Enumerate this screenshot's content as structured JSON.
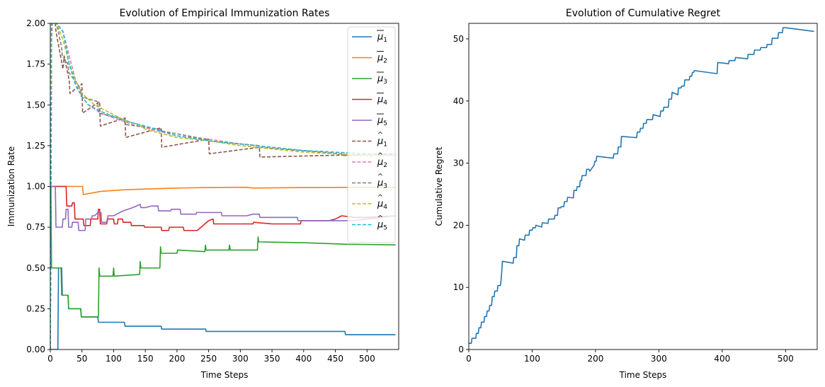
{
  "chart_data": [
    {
      "type": "line",
      "title": "Evolution of Empirical Immunization Rates",
      "xlabel": "Time Steps",
      "ylabel": "Immunization Rate",
      "xlim": [
        0,
        550
      ],
      "ylim": [
        0,
        2.0
      ],
      "xticks": [
        0,
        50,
        100,
        150,
        200,
        250,
        300,
        350,
        400,
        450,
        500
      ],
      "yticks": [
        0.0,
        0.25,
        0.5,
        0.75,
        1.0,
        1.25,
        1.5,
        1.75,
        2.0
      ],
      "xtick_labels": [
        "0",
        "50",
        "100",
        "150",
        "200",
        "250",
        "300",
        "350",
        "400",
        "450",
        "500"
      ],
      "ytick_labels": [
        "0.00",
        "0.25",
        "0.50",
        "0.75",
        "1.00",
        "1.25",
        "1.50",
        "1.75",
        "2.00"
      ],
      "grid": false,
      "legend_position": "top-right",
      "series": [
        {
          "name": "μ̄1",
          "base": "μ",
          "bar": true,
          "sub": "1",
          "color": "#1f77b4",
          "dash": false,
          "x": [
            0,
            12,
            13,
            18,
            19,
            28,
            29,
            48,
            49,
            75,
            76,
            117,
            118,
            175,
            176,
            245,
            246,
            465,
            466,
            545
          ],
          "y": [
            0,
            0,
            0.5,
            0.5,
            0.333,
            0.333,
            0.25,
            0.25,
            0.2,
            0.2,
            0.167,
            0.167,
            0.143,
            0.143,
            0.125,
            0.125,
            0.111,
            0.111,
            0.091,
            0.091
          ]
        },
        {
          "name": "μ̄2",
          "base": "μ",
          "bar": true,
          "sub": "2",
          "color": "#ff7f0e",
          "dash": false,
          "x": [
            0,
            51,
            52,
            80,
            120,
            160,
            200,
            250,
            310,
            320,
            400,
            545
          ],
          "y": [
            1.0,
            1.0,
            0.95,
            0.97,
            0.98,
            0.985,
            0.99,
            0.993,
            0.995,
            0.99,
            0.993,
            0.995
          ]
        },
        {
          "name": "μ̄3",
          "base": "μ",
          "bar": true,
          "sub": "3",
          "color": "#2ca02c",
          "dash": false,
          "x": [
            0,
            1,
            2,
            4,
            5,
            17,
            18,
            28,
            29,
            48,
            49,
            76,
            77,
            78,
            79,
            99,
            100,
            101,
            141,
            142,
            143,
            173,
            174,
            175,
            200,
            201,
            244,
            245,
            246,
            282,
            283,
            284,
            327,
            328,
            329,
            400,
            470,
            545
          ],
          "y": [
            1.0,
            1.0,
            0.5,
            0.5,
            0.5,
            0.5,
            0.333,
            0.333,
            0.25,
            0.25,
            0.2,
            0.2,
            0.5,
            0.45,
            0.45,
            0.45,
            0.5,
            0.45,
            0.46,
            0.54,
            0.5,
            0.5,
            0.63,
            0.59,
            0.59,
            0.61,
            0.6,
            0.64,
            0.61,
            0.61,
            0.64,
            0.61,
            0.61,
            0.69,
            0.66,
            0.655,
            0.645,
            0.642
          ]
        },
        {
          "name": "μ̄4",
          "base": "μ",
          "bar": true,
          "sub": "4",
          "color": "#d62728",
          "dash": false,
          "x": [
            0,
            25,
            26,
            34,
            35,
            38,
            39,
            52,
            53,
            63,
            64,
            75,
            76,
            78,
            79,
            89,
            90,
            100,
            101,
            106,
            107,
            114,
            115,
            127,
            128,
            148,
            149,
            175,
            176,
            187,
            188,
            210,
            211,
            232,
            250,
            257,
            258,
            320,
            321,
            350,
            380,
            395,
            396,
            440,
            450,
            460,
            480,
            500,
            545
          ],
          "y": [
            1.0,
            1.0,
            0.88,
            0.88,
            0.9,
            0.9,
            0.8,
            0.8,
            0.76,
            0.76,
            0.8,
            0.8,
            0.86,
            0.86,
            0.77,
            0.77,
            0.8,
            0.8,
            0.77,
            0.77,
            0.8,
            0.8,
            0.78,
            0.78,
            0.76,
            0.76,
            0.75,
            0.75,
            0.73,
            0.73,
            0.75,
            0.75,
            0.73,
            0.73,
            0.79,
            0.8,
            0.77,
            0.77,
            0.78,
            0.77,
            0.77,
            0.77,
            0.79,
            0.79,
            0.8,
            0.82,
            0.81,
            0.81,
            0.82
          ]
        },
        {
          "name": "μ̄5",
          "base": "μ",
          "bar": true,
          "sub": "5",
          "color": "#9467bd",
          "dash": false,
          "x": [
            0,
            8,
            9,
            19,
            20,
            24,
            25,
            28,
            29,
            34,
            35,
            44,
            45,
            55,
            56,
            65,
            66,
            70,
            75,
            80,
            81,
            90,
            91,
            100,
            115,
            130,
            142,
            143,
            150,
            160,
            170,
            171,
            190,
            191,
            205,
            206,
            230,
            231,
            260,
            270,
            271,
            310,
            320,
            330,
            331,
            390,
            391,
            480,
            500,
            520,
            545
          ],
          "y": [
            1.0,
            1.0,
            0.75,
            0.75,
            0.8,
            0.8,
            0.86,
            0.86,
            0.75,
            0.75,
            0.78,
            0.78,
            0.73,
            0.73,
            0.8,
            0.8,
            0.82,
            0.82,
            0.84,
            0.84,
            0.78,
            0.78,
            0.82,
            0.82,
            0.85,
            0.87,
            0.89,
            0.87,
            0.87,
            0.88,
            0.88,
            0.85,
            0.85,
            0.86,
            0.86,
            0.83,
            0.83,
            0.84,
            0.84,
            0.84,
            0.82,
            0.82,
            0.83,
            0.83,
            0.81,
            0.81,
            0.79,
            0.79,
            0.8,
            0.81,
            0.82
          ]
        },
        {
          "name": "μ̂1",
          "base": "μ",
          "bar": false,
          "sub": "1",
          "color": "#8c564b",
          "dash": true,
          "x": [
            0,
            2,
            3,
            8,
            9,
            20,
            22,
            23,
            30,
            31,
            50,
            51,
            78,
            79,
            118,
            119,
            175,
            176,
            250,
            251,
            330,
            331,
            545
          ],
          "y": [
            0,
            1.9,
            2.0,
            2.0,
            1.95,
            1.72,
            1.8,
            1.78,
            1.65,
            1.57,
            1.63,
            1.45,
            1.52,
            1.37,
            1.42,
            1.3,
            1.36,
            1.24,
            1.29,
            1.2,
            1.24,
            1.18,
            1.2
          ]
        },
        {
          "name": "μ̂2",
          "base": "μ",
          "bar": false,
          "sub": "2",
          "color": "#e377c2",
          "dash": true,
          "x": [
            0,
            2,
            10,
            20,
            30,
            40,
            50,
            60,
            80,
            100,
            130,
            150,
            200,
            250,
            300,
            350,
            400,
            450,
            500,
            545
          ],
          "y": [
            0,
            2.0,
            2.0,
            1.95,
            1.8,
            1.65,
            1.55,
            1.5,
            1.45,
            1.42,
            1.38,
            1.36,
            1.31,
            1.29,
            1.26,
            1.24,
            1.22,
            1.21,
            1.2,
            1.19
          ]
        },
        {
          "name": "μ̂3",
          "base": "μ",
          "bar": false,
          "sub": "3",
          "color": "#7f7f7f",
          "dash": true,
          "x": [
            0,
            2,
            10,
            18,
            19,
            28,
            29,
            48,
            49,
            75,
            76,
            117,
            118,
            175,
            176,
            245,
            246,
            330,
            331,
            460,
            461,
            545
          ],
          "y": [
            0,
            2.0,
            2.0,
            1.85,
            1.8,
            1.75,
            1.7,
            1.6,
            1.55,
            1.52,
            1.45,
            1.41,
            1.38,
            1.35,
            1.34,
            1.29,
            1.28,
            1.25,
            1.24,
            1.2,
            1.19,
            1.19
          ]
        },
        {
          "name": "μ̂4",
          "base": "μ",
          "bar": false,
          "sub": "4",
          "color": "#bcbd22",
          "dash": true,
          "x": [
            0,
            2,
            10,
            20,
            30,
            40,
            50,
            70,
            90,
            100,
            120,
            140,
            150,
            170,
            200,
            250,
            300,
            350,
            400,
            450,
            500,
            545
          ],
          "y": [
            0,
            2.0,
            2.0,
            1.9,
            1.75,
            1.65,
            1.57,
            1.5,
            1.46,
            1.44,
            1.4,
            1.38,
            1.35,
            1.33,
            1.3,
            1.28,
            1.25,
            1.23,
            1.21,
            1.2,
            1.19,
            1.19
          ]
        },
        {
          "name": "μ̂5",
          "base": "μ",
          "bar": false,
          "sub": "5",
          "color": "#17becf",
          "dash": true,
          "x": [
            0,
            2,
            10,
            20,
            25,
            30,
            40,
            50,
            60,
            80,
            100,
            130,
            150,
            200,
            250,
            300,
            350,
            400,
            450,
            500,
            545
          ],
          "y": [
            0,
            2.0,
            2.0,
            1.95,
            1.85,
            1.75,
            1.62,
            1.55,
            1.5,
            1.46,
            1.43,
            1.39,
            1.37,
            1.31,
            1.28,
            1.26,
            1.24,
            1.22,
            1.21,
            1.2,
            1.19
          ]
        }
      ]
    },
    {
      "type": "line",
      "title": "Evolution of Cumulative Regret",
      "xlabel": "Time Steps",
      "ylabel": "Cumulative Regret",
      "xlim": [
        0,
        550
      ],
      "ylim": [
        0,
        52.5
      ],
      "xticks": [
        0,
        100,
        200,
        300,
        400,
        500
      ],
      "yticks": [
        0,
        10,
        20,
        30,
        40,
        50
      ],
      "xtick_labels": [
        "0",
        "100",
        "200",
        "300",
        "400",
        "500"
      ],
      "ytick_labels": [
        "0",
        "10",
        "20",
        "30",
        "40",
        "50"
      ],
      "grid": false,
      "series": [
        {
          "color": "#1f77b4",
          "x": [
            0,
            4,
            5,
            11,
            12,
            15,
            16,
            19,
            20,
            24,
            25,
            28,
            29,
            32,
            33,
            36,
            37,
            40,
            41,
            45,
            46,
            50,
            51,
            52,
            53,
            70,
            71,
            75,
            76,
            79,
            80,
            88,
            89,
            95,
            96,
            100,
            101,
            105,
            106,
            115,
            116,
            125,
            126,
            135,
            136,
            140,
            141,
            145,
            146,
            150,
            151,
            155,
            156,
            165,
            166,
            170,
            171,
            175,
            176,
            178,
            179,
            185,
            186,
            190,
            191,
            198,
            199,
            201,
            202,
            228,
            229,
            235,
            236,
            240,
            241,
            265,
            266,
            270,
            271,
            275,
            276,
            280,
            281,
            290,
            291,
            302,
            303,
            307,
            308,
            315,
            316,
            320,
            321,
            330,
            331,
            335,
            336,
            340,
            341,
            348,
            349,
            352,
            353,
            355,
            356,
            392,
            393,
            410,
            411,
            420,
            421,
            440,
            441,
            450,
            451,
            460,
            461,
            470,
            471,
            478,
            479,
            488,
            489,
            495,
            496,
            500,
            545
          ],
          "y": [
            1.0,
            1.0,
            1.8,
            1.8,
            2.6,
            2.6,
            3.5,
            3.5,
            4.4,
            4.4,
            5.3,
            5.3,
            6.2,
            6.2,
            7.1,
            7.1,
            8.5,
            8.5,
            9.4,
            9.4,
            10.3,
            10.3,
            11.2,
            12.5,
            14.2,
            13.9,
            14.8,
            14.8,
            16.7,
            16.7,
            17.8,
            17.6,
            18.4,
            18.4,
            19.2,
            19.2,
            19.6,
            19.6,
            20.0,
            19.7,
            20.4,
            20.3,
            21.0,
            21.0,
            21.6,
            21.6,
            22.8,
            22.8,
            23.0,
            23.0,
            23.8,
            23.8,
            24.5,
            24.4,
            25.6,
            25.6,
            26.2,
            26.2,
            27.2,
            27.2,
            28.0,
            28.0,
            29.0,
            29.0,
            28.7,
            29.7,
            30.3,
            30.3,
            31.1,
            30.8,
            31.5,
            31.5,
            32.6,
            32.6,
            34.3,
            34.1,
            35.0,
            35.0,
            35.6,
            35.6,
            36.4,
            36.4,
            37.0,
            37.0,
            37.8,
            37.5,
            38.4,
            38.4,
            39.0,
            39.0,
            40.3,
            40.3,
            41.4,
            41.0,
            42.1,
            42.1,
            42.4,
            42.4,
            43.4,
            43.4,
            44.0,
            44.0,
            44.6,
            44.6,
            44.9,
            44.4,
            46.2,
            46.0,
            46.5,
            46.5,
            47.0,
            46.8,
            47.5,
            47.5,
            48.2,
            48.2,
            48.6,
            48.6,
            49.1,
            49.1,
            50.1,
            50.1,
            51.0,
            51.0,
            51.8,
            51.8,
            51.2
          ]
        }
      ]
    }
  ]
}
